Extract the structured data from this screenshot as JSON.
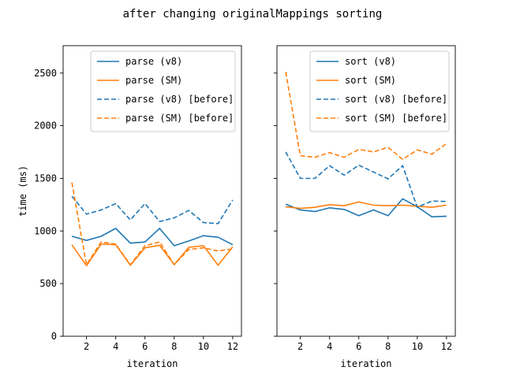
{
  "figure": {
    "title": "after changing originalMappings sorting"
  },
  "colors": {
    "v8": "#1f77b4",
    "sm": "#ff7f0e"
  },
  "chart_data": [
    {
      "type": "line",
      "xlabel": "iteration",
      "ylabel": "time (ms)",
      "xlim": [
        0.4,
        12.6
      ],
      "ylim": [
        0,
        2760
      ],
      "xticks": [
        2,
        4,
        6,
        8,
        10,
        12
      ],
      "yticks": [
        0,
        500,
        1000,
        1500,
        2000,
        2500
      ],
      "legend_position": "upper-right",
      "x": [
        1,
        2,
        3,
        4,
        5,
        6,
        7,
        8,
        9,
        10,
        11,
        12
      ],
      "series": [
        {
          "name": "parse (v8)",
          "color": "#1f77b4",
          "dash": "solid",
          "values": [
            950,
            910,
            950,
            1025,
            885,
            895,
            1025,
            860,
            905,
            955,
            940,
            870
          ]
        },
        {
          "name": "parse (SM)",
          "color": "#ff7f0e",
          "dash": "solid",
          "values": [
            870,
            670,
            875,
            870,
            675,
            840,
            865,
            680,
            845,
            860,
            675,
            850
          ]
        },
        {
          "name": "parse (v8) [before]",
          "color": "#1f77b4",
          "dash": "dashed",
          "values": [
            1330,
            1160,
            1200,
            1260,
            1105,
            1260,
            1090,
            1125,
            1195,
            1080,
            1070,
            1295
          ]
        },
        {
          "name": "parse (SM) [before]",
          "color": "#ff7f0e",
          "dash": "dashed",
          "values": [
            1460,
            680,
            895,
            875,
            680,
            860,
            895,
            680,
            825,
            840,
            810,
            830
          ]
        }
      ]
    },
    {
      "type": "line",
      "xlabel": "iteration",
      "ylabel": "",
      "xlim": [
        0.4,
        12.6
      ],
      "ylim": [
        0,
        2760
      ],
      "xticks": [
        2,
        4,
        6,
        8,
        10,
        12
      ],
      "yticks": [
        0,
        500,
        1000,
        1500,
        2000,
        2500
      ],
      "show_ytick_labels": false,
      "legend_position": "upper-right",
      "x": [
        1,
        2,
        3,
        4,
        5,
        6,
        7,
        8,
        9,
        10,
        11,
        12
      ],
      "series": [
        {
          "name": "sort (v8)",
          "color": "#1f77b4",
          "dash": "solid",
          "values": [
            1255,
            1200,
            1185,
            1220,
            1205,
            1145,
            1200,
            1145,
            1305,
            1230,
            1135,
            1140
          ]
        },
        {
          "name": "sort (SM)",
          "color": "#ff7f0e",
          "dash": "solid",
          "values": [
            1230,
            1215,
            1225,
            1250,
            1240,
            1275,
            1245,
            1240,
            1245,
            1235,
            1225,
            1245
          ]
        },
        {
          "name": "sort (v8) [before]",
          "color": "#1f77b4",
          "dash": "dashed",
          "values": [
            1750,
            1500,
            1500,
            1620,
            1530,
            1625,
            1560,
            1495,
            1620,
            1225,
            1285,
            1280
          ]
        },
        {
          "name": "sort (SM) [before]",
          "color": "#ff7f0e",
          "dash": "dashed",
          "values": [
            2510,
            1715,
            1700,
            1745,
            1700,
            1775,
            1750,
            1795,
            1680,
            1770,
            1730,
            1830
          ]
        }
      ]
    }
  ]
}
